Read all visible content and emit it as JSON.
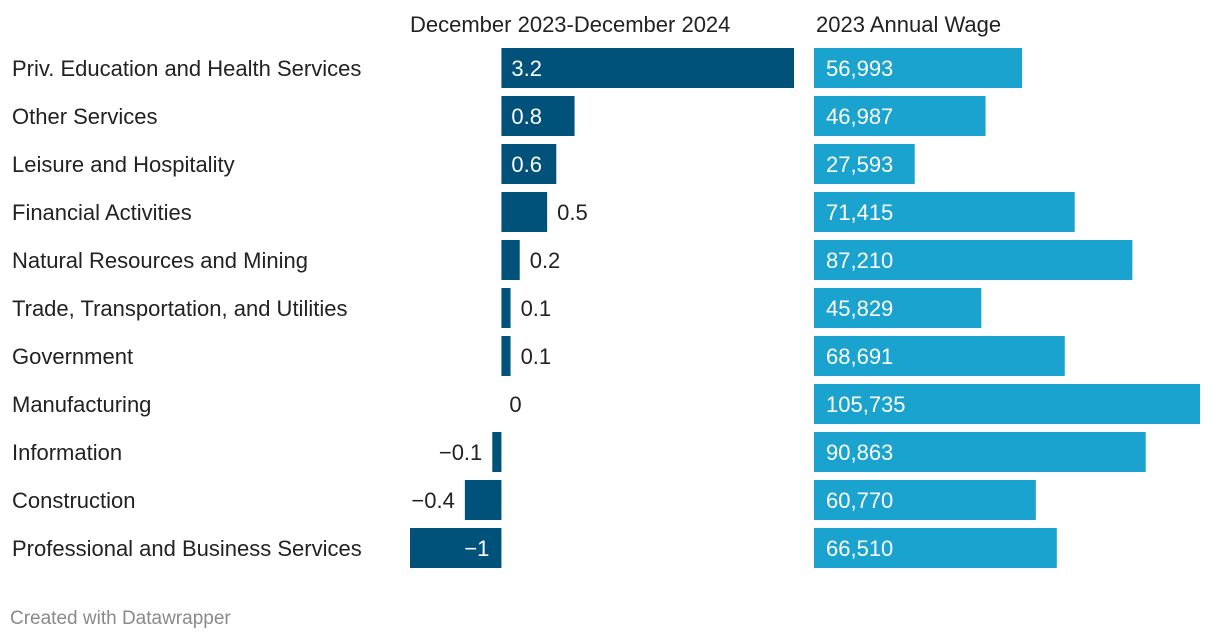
{
  "chart_data": {
    "type": "bar",
    "orientation": "horizontal",
    "categories": [
      "Priv. Education and Health Services",
      "Other Services",
      "Leisure and Hospitality",
      "Financial Activities",
      "Natural Resources and Mining",
      "Trade, Transportation, and Utilities",
      "Government",
      "Manufacturing",
      "Information",
      "Construction",
      "Professional and Business Services"
    ],
    "series": [
      {
        "name": "December 2023-December 2024",
        "values": [
          3.2,
          0.8,
          0.6,
          0.5,
          0.2,
          0.1,
          0.1,
          0,
          -0.1,
          -0.4,
          -1
        ],
        "labels": [
          "3.2",
          "0.8",
          "0.6",
          "0.5",
          "0.2",
          "0.1",
          "0.1",
          "0",
          "−0.1",
          "−0.4",
          "−1"
        ],
        "range": [
          -1,
          3.2
        ],
        "color": "#00527a"
      },
      {
        "name": "2023 Annual Wage",
        "values": [
          56993,
          46987,
          27593,
          71415,
          87210,
          45829,
          68691,
          105735,
          90863,
          60770,
          66510
        ],
        "labels": [
          "56,993",
          "46,987",
          "27,593",
          "71,415",
          "87,210",
          "45,829",
          "68,691",
          "105,735",
          "90,863",
          "60,770",
          "66,510"
        ],
        "range": [
          0,
          105735
        ],
        "color": "#1aa3cf"
      }
    ],
    "legend": "none"
  },
  "footer": {
    "text": "Created with Datawrapper"
  }
}
